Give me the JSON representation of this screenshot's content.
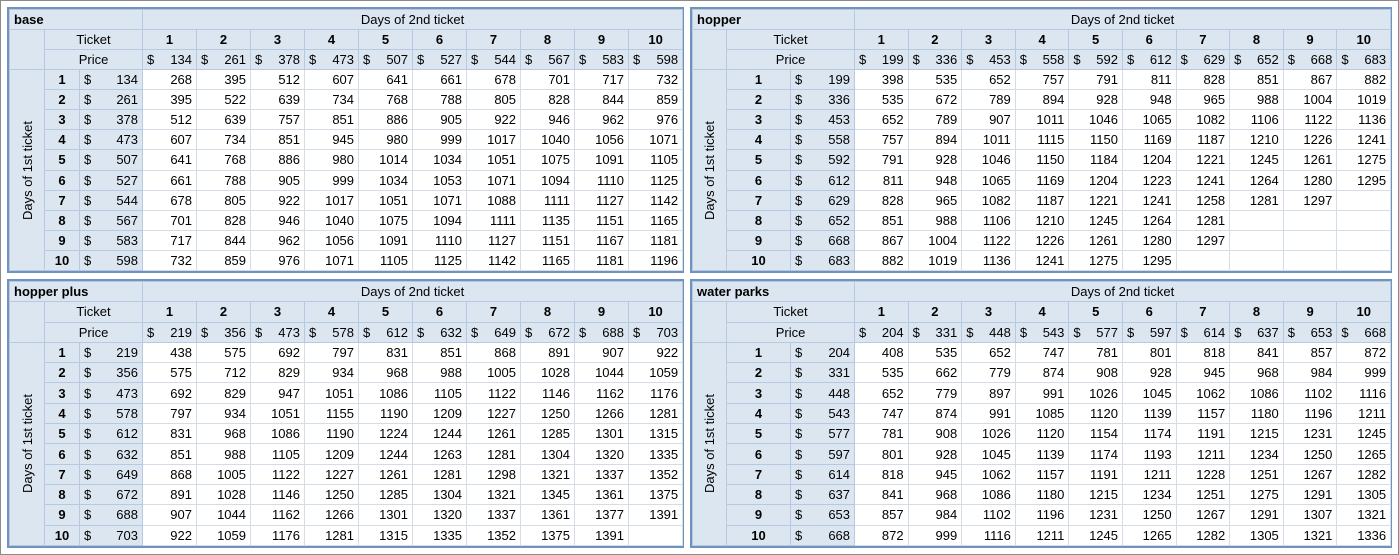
{
  "tables": [
    {
      "title": "base",
      "col_header": "Days of 2nd ticket",
      "row_header": "Days of 1st ticket",
      "ticket_label": "Ticket",
      "price_label": "Price",
      "currency": "$",
      "days": [
        1,
        2,
        3,
        4,
        5,
        6,
        7,
        8,
        9,
        10
      ],
      "prices": [
        134,
        261,
        378,
        473,
        507,
        527,
        544,
        567,
        583,
        598
      ],
      "totals": [
        [
          268,
          395,
          512,
          607,
          641,
          661,
          678,
          701,
          717,
          732
        ],
        [
          395,
          522,
          639,
          734,
          768,
          788,
          805,
          828,
          844,
          859
        ],
        [
          512,
          639,
          757,
          851,
          886,
          905,
          922,
          946,
          962,
          976
        ],
        [
          607,
          734,
          851,
          945,
          980,
          999,
          1017,
          1040,
          1056,
          1071
        ],
        [
          641,
          768,
          886,
          980,
          1014,
          1034,
          1051,
          1075,
          1091,
          1105
        ],
        [
          661,
          788,
          905,
          999,
          1034,
          1053,
          1071,
          1094,
          1110,
          1125
        ],
        [
          678,
          805,
          922,
          1017,
          1051,
          1071,
          1088,
          1111,
          1127,
          1142
        ],
        [
          701,
          828,
          946,
          1040,
          1075,
          1094,
          1111,
          1135,
          1151,
          1165
        ],
        [
          717,
          844,
          962,
          1056,
          1091,
          1110,
          1127,
          1151,
          1167,
          1181
        ],
        [
          732,
          859,
          976,
          1071,
          1105,
          1125,
          1142,
          1165,
          1181,
          1196
        ]
      ]
    },
    {
      "title": "hopper",
      "col_header": "Days of 2nd ticket",
      "row_header": "Days of 1st ticket",
      "ticket_label": "Ticket",
      "price_label": "Price",
      "currency": "$",
      "days": [
        1,
        2,
        3,
        4,
        5,
        6,
        7,
        8,
        9,
        10
      ],
      "prices": [
        199,
        336,
        453,
        558,
        592,
        612,
        629,
        652,
        668,
        683
      ],
      "totals": [
        [
          398,
          535,
          652,
          757,
          791,
          811,
          828,
          851,
          867,
          882
        ],
        [
          535,
          672,
          789,
          894,
          928,
          948,
          965,
          988,
          1004,
          1019
        ],
        [
          652,
          789,
          907,
          1011,
          1046,
          1065,
          1082,
          1106,
          1122,
          1136
        ],
        [
          757,
          894,
          1011,
          1115,
          1150,
          1169,
          1187,
          1210,
          1226,
          1241
        ],
        [
          791,
          928,
          1046,
          1150,
          1184,
          1204,
          1221,
          1245,
          1261,
          1275
        ],
        [
          811,
          948,
          1065,
          1169,
          1204,
          1223,
          1241,
          1264,
          1280,
          1295
        ],
        [
          828,
          965,
          1082,
          1187,
          1221,
          1241,
          1258,
          1281,
          1297,
          null
        ],
        [
          851,
          988,
          1106,
          1210,
          1245,
          1264,
          1281,
          null,
          null,
          null
        ],
        [
          867,
          1004,
          1122,
          1226,
          1261,
          1280,
          1297,
          null,
          null,
          null
        ],
        [
          882,
          1019,
          1136,
          1241,
          1275,
          1295,
          null,
          null,
          null,
          null
        ]
      ]
    },
    {
      "title": "hopper plus",
      "col_header": "Days of 2nd ticket",
      "row_header": "Days of 1st ticket",
      "ticket_label": "Ticket",
      "price_label": "Price",
      "currency": "$",
      "days": [
        1,
        2,
        3,
        4,
        5,
        6,
        7,
        8,
        9,
        10
      ],
      "prices": [
        219,
        356,
        473,
        578,
        612,
        632,
        649,
        672,
        688,
        703
      ],
      "totals": [
        [
          438,
          575,
          692,
          797,
          831,
          851,
          868,
          891,
          907,
          922
        ],
        [
          575,
          712,
          829,
          934,
          968,
          988,
          1005,
          1028,
          1044,
          1059
        ],
        [
          692,
          829,
          947,
          1051,
          1086,
          1105,
          1122,
          1146,
          1162,
          1176
        ],
        [
          797,
          934,
          1051,
          1155,
          1190,
          1209,
          1227,
          1250,
          1266,
          1281
        ],
        [
          831,
          968,
          1086,
          1190,
          1224,
          1244,
          1261,
          1285,
          1301,
          1315
        ],
        [
          851,
          988,
          1105,
          1209,
          1244,
          1263,
          1281,
          1304,
          1320,
          1335
        ],
        [
          868,
          1005,
          1122,
          1227,
          1261,
          1281,
          1298,
          1321,
          1337,
          1352
        ],
        [
          891,
          1028,
          1146,
          1250,
          1285,
          1304,
          1321,
          1345,
          1361,
          1375
        ],
        [
          907,
          1044,
          1162,
          1266,
          1301,
          1320,
          1337,
          1361,
          1377,
          1391
        ],
        [
          922,
          1059,
          1176,
          1281,
          1315,
          1335,
          1352,
          1375,
          1391,
          null
        ]
      ]
    },
    {
      "title": "water parks",
      "col_header": "Days of 2nd ticket",
      "row_header": "Days of 1st ticket",
      "ticket_label": "Ticket",
      "price_label": "Price",
      "currency": "$",
      "days": [
        1,
        2,
        3,
        4,
        5,
        6,
        7,
        8,
        9,
        10
      ],
      "prices": [
        204,
        331,
        448,
        543,
        577,
        597,
        614,
        637,
        653,
        668
      ],
      "totals": [
        [
          408,
          535,
          652,
          747,
          781,
          801,
          818,
          841,
          857,
          872
        ],
        [
          535,
          662,
          779,
          874,
          908,
          928,
          945,
          968,
          984,
          999
        ],
        [
          652,
          779,
          897,
          991,
          1026,
          1045,
          1062,
          1086,
          1102,
          1116
        ],
        [
          747,
          874,
          991,
          1085,
          1120,
          1139,
          1157,
          1180,
          1196,
          1211
        ],
        [
          781,
          908,
          1026,
          1120,
          1154,
          1174,
          1191,
          1215,
          1231,
          1245
        ],
        [
          801,
          928,
          1045,
          1139,
          1174,
          1193,
          1211,
          1234,
          1250,
          1265
        ],
        [
          818,
          945,
          1062,
          1157,
          1191,
          1211,
          1228,
          1251,
          1267,
          1282
        ],
        [
          841,
          968,
          1086,
          1180,
          1215,
          1234,
          1251,
          1275,
          1291,
          1305
        ],
        [
          857,
          984,
          1102,
          1196,
          1231,
          1250,
          1267,
          1291,
          1307,
          1321
        ],
        [
          872,
          999,
          1116,
          1211,
          1245,
          1265,
          1282,
          1305,
          1321,
          1336
        ]
      ]
    }
  ]
}
